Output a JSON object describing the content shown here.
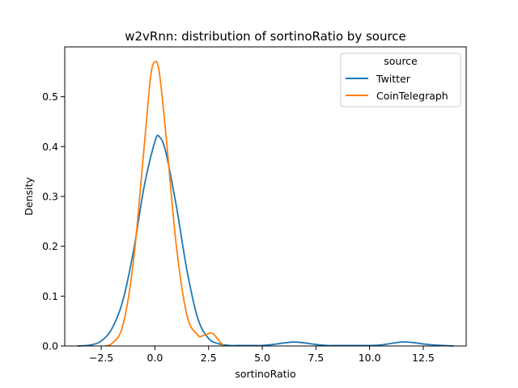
{
  "chart_data": {
    "type": "line",
    "title": "w2vRnn: distribution of sortinoRatio by source",
    "xlabel": "sortinoRatio",
    "ylabel": "Density",
    "xlim": [
      -4.2,
      14.5
    ],
    "ylim": [
      0,
      0.6
    ],
    "x_ticks": [
      -2.5,
      0.0,
      2.5,
      5.0,
      7.5,
      10.0,
      12.5
    ],
    "x_tick_labels": [
      "−2.5",
      "0.0",
      "2.5",
      "5.0",
      "7.5",
      "10.0",
      "12.5"
    ],
    "y_ticks": [
      0.0,
      0.1,
      0.2,
      0.3,
      0.4,
      0.5
    ],
    "y_tick_labels": [
      "0.0",
      "0.1",
      "0.2",
      "0.3",
      "0.4",
      "0.5"
    ],
    "grid": false,
    "legend": {
      "title": "source",
      "placement": "top-right"
    },
    "series": [
      {
        "name": "Twitter",
        "color": "#1f77b4",
        "x": [
          -3.6,
          -3.0,
          -2.5,
          -2.0,
          -1.5,
          -1.0,
          -0.5,
          0.0,
          0.2,
          0.5,
          1.0,
          1.5,
          2.0,
          2.5,
          3.0,
          3.5,
          4.0,
          4.5,
          5.0,
          5.5,
          6.0,
          6.5,
          7.0,
          7.5,
          8.0,
          8.5,
          9.0,
          9.5,
          10.0,
          10.5,
          11.0,
          11.5,
          12.0,
          12.5,
          13.0,
          13.9
        ],
        "y": [
          0.0,
          0.002,
          0.01,
          0.035,
          0.09,
          0.19,
          0.32,
          0.41,
          0.42,
          0.39,
          0.28,
          0.15,
          0.055,
          0.015,
          0.004,
          0.001,
          0.001,
          0.001,
          0.001,
          0.003,
          0.006,
          0.008,
          0.006,
          0.003,
          0.001,
          0.001,
          0.001,
          0.001,
          0.001,
          0.002,
          0.005,
          0.008,
          0.007,
          0.004,
          0.002,
          0.0
        ]
      },
      {
        "name": "CoinTelegraph",
        "color": "#ff7f0e",
        "x": [
          -2.3,
          -2.0,
          -1.5,
          -1.0,
          -0.5,
          -0.2,
          0.0,
          0.2,
          0.5,
          1.0,
          1.5,
          2.0,
          2.2,
          2.5,
          2.7,
          3.0,
          3.2
        ],
        "y": [
          0.0,
          0.005,
          0.04,
          0.17,
          0.4,
          0.54,
          0.57,
          0.55,
          0.43,
          0.2,
          0.06,
          0.022,
          0.02,
          0.025,
          0.025,
          0.01,
          0.0
        ]
      }
    ]
  }
}
